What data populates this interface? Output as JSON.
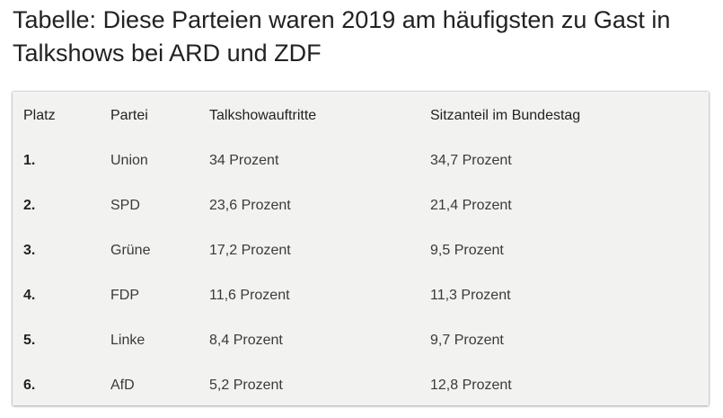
{
  "title": "Tabelle: Diese Parteien waren 2019 am häufigsten zu Gast in Talkshows bei ARD und ZDF",
  "table": {
    "headers": [
      "Platz",
      "Partei",
      "Talkshowauftritte",
      "Sitzanteil im Bundestag"
    ],
    "rows": [
      {
        "platz": "1.",
        "partei": "Union",
        "talkshow": "34 Prozent",
        "sitzanteil": "34,7 Prozent"
      },
      {
        "platz": "2.",
        "partei": "SPD",
        "talkshow": "23,6 Prozent",
        "sitzanteil": "21,4 Prozent"
      },
      {
        "platz": "3.",
        "partei": "Grüne",
        "talkshow": "17,2 Prozent",
        "sitzanteil": "9,5 Prozent"
      },
      {
        "platz": "4.",
        "partei": "FDP",
        "talkshow": "11,6 Prozent",
        "sitzanteil": "11,3 Prozent"
      },
      {
        "platz": "5.",
        "partei": "Linke",
        "talkshow": "8,4 Prozent",
        "sitzanteil": "9,7 Prozent"
      },
      {
        "platz": "6.",
        "partei": "AfD",
        "talkshow": "5,2 Prozent",
        "sitzanteil": "12,8 Prozent"
      }
    ]
  },
  "colors": {
    "table_background": "#f2f2f1",
    "text": "#222222"
  }
}
